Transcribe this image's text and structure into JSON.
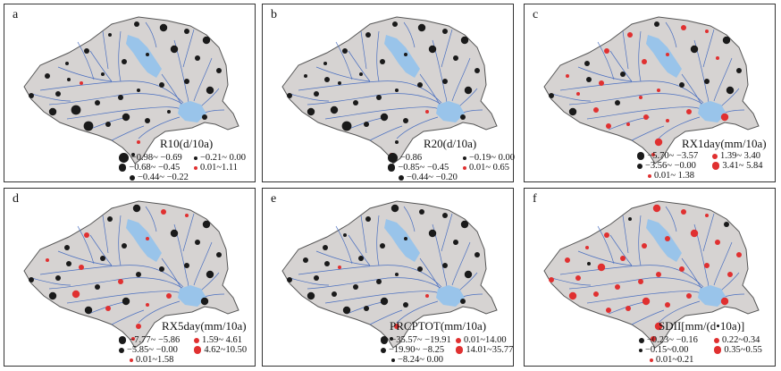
{
  "colors": {
    "basin": "#d6d3d2",
    "outline": "#555555",
    "river": "#4a6fc0",
    "lake": "#99c4ea",
    "negative": "#1a1a1a",
    "positive": "#e03030"
  },
  "panels": [
    {
      "label": "a",
      "title": "R10(d/10a)",
      "legend": [
        {
          "text": "−0.98~ −0.69",
          "color": "negative",
          "size": 4
        },
        {
          "text": "−0.21~ 0.00",
          "color": "negative",
          "size": 1
        },
        {
          "text": "−0.68~ −0.45",
          "color": "negative",
          "size": 3
        },
        {
          "text": "0.01~1.11",
          "color": "positive",
          "size": 1
        },
        {
          "text": "−0.44~ −0.22",
          "color": "negative",
          "size": 2
        }
      ]
    },
    {
      "label": "b",
      "title": "R20(d/10a)",
      "legend": [
        {
          "text": "−0.86",
          "color": "negative",
          "size": 4
        },
        {
          "text": "−0.19~ 0.00",
          "color": "negative",
          "size": 1
        },
        {
          "text": "−0.85~ −0.45",
          "color": "negative",
          "size": 3
        },
        {
          "text": "0.01~ 0.65",
          "color": "positive",
          "size": 1
        },
        {
          "text": "−0.44~ −0.20",
          "color": "negative",
          "size": 2
        }
      ]
    },
    {
      "label": "c",
      "title": "RX1day(mm/10a)",
      "legend": [
        {
          "text": "−5.70~ −3.57",
          "color": "negative",
          "size": 3
        },
        {
          "text": "1.39~ 3.40",
          "color": "positive",
          "size": 2
        },
        {
          "text": "−3.56~ −0.00",
          "color": "negative",
          "size": 2
        },
        {
          "text": "3.41~ 5.84",
          "color": "positive",
          "size": 3
        },
        {
          "text": "0.01~ 1.38",
          "color": "positive",
          "size": 1
        }
      ]
    },
    {
      "label": "d",
      "title": "RX5day(mm/10a)",
      "legend": [
        {
          "text": "−7.77~ −5.86",
          "color": "negative",
          "size": 3
        },
        {
          "text": "1.59~ 4.61",
          "color": "positive",
          "size": 2
        },
        {
          "text": "−5.85~ −0.00",
          "color": "negative",
          "size": 2
        },
        {
          "text": "4.62~10.50",
          "color": "positive",
          "size": 3
        },
        {
          "text": "0.01~1.58",
          "color": "positive",
          "size": 1
        }
      ]
    },
    {
      "label": "e",
      "title": "PRCPTOT(mm/10a)",
      "legend": [
        {
          "text": "−35.57~ −19.91",
          "color": "negative",
          "size": 3
        },
        {
          "text": "0.01~14.00",
          "color": "positive",
          "size": 2
        },
        {
          "text": "−19.90~ −8.25",
          "color": "negative",
          "size": 2
        },
        {
          "text": "14.01~35.77",
          "color": "positive",
          "size": 3
        },
        {
          "text": "−8.24~ 0.00",
          "color": "negative",
          "size": 1
        }
      ]
    },
    {
      "label": "f",
      "title": "SDII[mm/(d•10a)]",
      "legend": [
        {
          "text": "−0.23~ −0.16",
          "color": "negative",
          "size": 2
        },
        {
          "text": "0.22~0.34",
          "color": "positive",
          "size": 2
        },
        {
          "text": "−0.15~0.00",
          "color": "negative",
          "size": 1
        },
        {
          "text": "0.35~0.55",
          "color": "positive",
          "size": 3
        },
        {
          "text": "0.01~0.21",
          "color": "positive",
          "size": 1
        }
      ]
    }
  ]
}
